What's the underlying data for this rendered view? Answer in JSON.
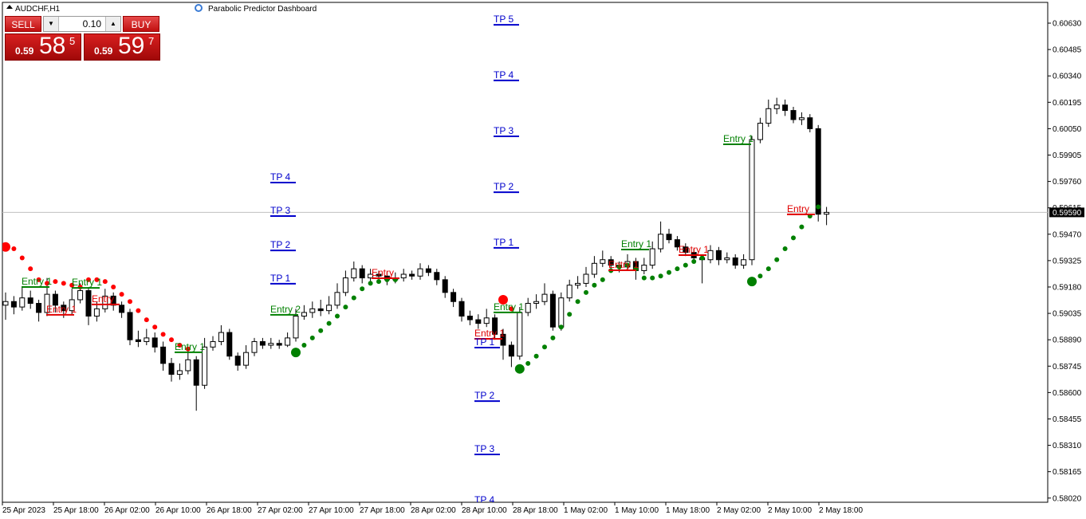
{
  "chart_data": {
    "type": "candlestick",
    "title": "AUDCHF,H1",
    "indicator": "Parabolic Predictor Dashboard",
    "ylim": [
      0.57997,
      0.60744
    ],
    "yticks": [
      {
        "value": 0.6063,
        "label": "0.60630"
      },
      {
        "value": 0.60485,
        "label": "0.60485"
      },
      {
        "value": 0.6034,
        "label": "0.60340"
      },
      {
        "value": 0.60195,
        "label": "0.60195"
      },
      {
        "value": 0.6005,
        "label": "0.60050"
      },
      {
        "value": 0.59905,
        "label": "0.59905"
      },
      {
        "value": 0.5976,
        "label": "0.59760"
      },
      {
        "value": 0.59615,
        "label": "0.59615"
      },
      {
        "value": 0.5947,
        "label": "0.59470"
      },
      {
        "value": 0.59325,
        "label": "0.59325"
      },
      {
        "value": 0.5918,
        "label": "0.59180"
      },
      {
        "value": 0.59035,
        "label": "0.59035"
      },
      {
        "value": 0.5889,
        "label": "0.58890"
      },
      {
        "value": 0.58745,
        "label": "0.58745"
      },
      {
        "value": 0.586,
        "label": "0.58600"
      },
      {
        "value": 0.58455,
        "label": "0.58455"
      },
      {
        "value": 0.5831,
        "label": "0.58310"
      },
      {
        "value": 0.58165,
        "label": "0.58165"
      },
      {
        "value": 0.5802,
        "label": "0.58020"
      }
    ],
    "current_price": {
      "value": 0.5959,
      "label": "0.59590"
    },
    "xlabels": [
      "25 Apr 2023",
      "25 Apr 18:00",
      "26 Apr 02:00",
      "26 Apr 10:00",
      "26 Apr 18:00",
      "27 Apr 02:00",
      "27 Apr 10:00",
      "27 Apr 18:00",
      "28 Apr 02:00",
      "28 Apr 10:00",
      "28 Apr 18:00",
      "1 May 02:00",
      "1 May 10:00",
      "1 May 18:00",
      "2 May 02:00",
      "2 May 10:00",
      "2 May 18:00"
    ],
    "bull_color": "#ffffff",
    "bear_color": "#000000",
    "candles": [
      [
        0.5908,
        0.5915,
        0.59,
        0.591
      ],
      [
        0.591,
        0.5913,
        0.5903,
        0.5907
      ],
      [
        0.5907,
        0.5918,
        0.5905,
        0.5912
      ],
      [
        0.5912,
        0.5916,
        0.5906,
        0.5909
      ],
      [
        0.5909,
        0.5911,
        0.5899,
        0.5904
      ],
      [
        0.5904,
        0.5923,
        0.5902,
        0.5914
      ],
      [
        0.5914,
        0.5916,
        0.5904,
        0.5908
      ],
      [
        0.5908,
        0.591,
        0.5901,
        0.5905
      ],
      [
        0.5905,
        0.5917,
        0.5903,
        0.5911
      ],
      [
        0.5911,
        0.592,
        0.5909,
        0.5916
      ],
      [
        0.5916,
        0.5918,
        0.5897,
        0.5902
      ],
      [
        0.5902,
        0.591,
        0.5899,
        0.5906
      ],
      [
        0.5906,
        0.5917,
        0.5904,
        0.5913
      ],
      [
        0.5913,
        0.5915,
        0.5905,
        0.5908
      ],
      [
        0.5908,
        0.591,
        0.5901,
        0.5904
      ],
      [
        0.5904,
        0.5906,
        0.5886,
        0.5889
      ],
      [
        0.5889,
        0.5894,
        0.5885,
        0.5888
      ],
      [
        0.5888,
        0.5895,
        0.5886,
        0.589
      ],
      [
        0.589,
        0.5893,
        0.5882,
        0.5885
      ],
      [
        0.5885,
        0.5888,
        0.5872,
        0.5876
      ],
      [
        0.5876,
        0.5879,
        0.5866,
        0.587
      ],
      [
        0.587,
        0.5876,
        0.5867,
        0.5872
      ],
      [
        0.5872,
        0.5883,
        0.587,
        0.5878
      ],
      [
        0.5878,
        0.588,
        0.585,
        0.5864
      ],
      [
        0.5864,
        0.589,
        0.5862,
        0.5885
      ],
      [
        0.5885,
        0.5891,
        0.5883,
        0.5888
      ],
      [
        0.5888,
        0.5897,
        0.5886,
        0.5893
      ],
      [
        0.5893,
        0.5895,
        0.5878,
        0.588
      ],
      [
        0.588,
        0.5882,
        0.5872,
        0.5875
      ],
      [
        0.5875,
        0.5886,
        0.5873,
        0.5882
      ],
      [
        0.5882,
        0.589,
        0.588,
        0.5888
      ],
      [
        0.5888,
        0.589,
        0.5884,
        0.5886
      ],
      [
        0.5886,
        0.589,
        0.5884,
        0.5887
      ],
      [
        0.5887,
        0.5889,
        0.5884,
        0.5886
      ],
      [
        0.5886,
        0.5893,
        0.5885,
        0.589
      ],
      [
        0.589,
        0.5906,
        0.5888,
        0.5902
      ],
      [
        0.5902,
        0.5908,
        0.59,
        0.5904
      ],
      [
        0.5904,
        0.591,
        0.5901,
        0.5906
      ],
      [
        0.5906,
        0.5911,
        0.5902,
        0.5905
      ],
      [
        0.5905,
        0.5913,
        0.5903,
        0.5908
      ],
      [
        0.5908,
        0.592,
        0.5906,
        0.5915
      ],
      [
        0.5915,
        0.5927,
        0.5913,
        0.5923
      ],
      [
        0.5923,
        0.5932,
        0.5921,
        0.5928
      ],
      [
        0.5928,
        0.593,
        0.592,
        0.5923
      ],
      [
        0.5923,
        0.5928,
        0.5921,
        0.5925
      ],
      [
        0.5925,
        0.5927,
        0.5922,
        0.5924
      ],
      [
        0.5924,
        0.5926,
        0.5919,
        0.5922
      ],
      [
        0.5922,
        0.5926,
        0.592,
        0.5923
      ],
      [
        0.5923,
        0.5928,
        0.5921,
        0.5925
      ],
      [
        0.5925,
        0.5927,
        0.5922,
        0.5924
      ],
      [
        0.5924,
        0.5931,
        0.5922,
        0.5928
      ],
      [
        0.5928,
        0.593,
        0.5924,
        0.5926
      ],
      [
        0.5926,
        0.5928,
        0.5919,
        0.5922
      ],
      [
        0.5922,
        0.5924,
        0.5912,
        0.5915
      ],
      [
        0.5915,
        0.5917,
        0.5907,
        0.591
      ],
      [
        0.591,
        0.5912,
        0.5899,
        0.5902
      ],
      [
        0.5902,
        0.5905,
        0.5897,
        0.59
      ],
      [
        0.59,
        0.5903,
        0.5895,
        0.5898
      ],
      [
        0.5898,
        0.5906,
        0.5896,
        0.5901
      ],
      [
        0.5901,
        0.5903,
        0.5889,
        0.5892
      ],
      [
        0.5892,
        0.5895,
        0.5878,
        0.5886
      ],
      [
        0.5886,
        0.5888,
        0.5874,
        0.588
      ],
      [
        0.588,
        0.5907,
        0.5878,
        0.5904
      ],
      [
        0.5904,
        0.5912,
        0.5902,
        0.5909
      ],
      [
        0.5909,
        0.5914,
        0.5906,
        0.591
      ],
      [
        0.591,
        0.592,
        0.5908,
        0.5914
      ],
      [
        0.5914,
        0.5916,
        0.5894,
        0.5896
      ],
      [
        0.5896,
        0.5915,
        0.5894,
        0.5912
      ],
      [
        0.5912,
        0.5922,
        0.591,
        0.5919
      ],
      [
        0.5919,
        0.5924,
        0.5917,
        0.592
      ],
      [
        0.592,
        0.5929,
        0.5918,
        0.5925
      ],
      [
        0.5925,
        0.5935,
        0.5923,
        0.5931
      ],
      [
        0.5931,
        0.5938,
        0.5929,
        0.5933
      ],
      [
        0.5933,
        0.5935,
        0.5927,
        0.593
      ],
      [
        0.593,
        0.5932,
        0.5926,
        0.5929
      ],
      [
        0.5929,
        0.5936,
        0.5927,
        0.5932
      ],
      [
        0.5932,
        0.5934,
        0.5922,
        0.5927
      ],
      [
        0.5927,
        0.5934,
        0.5925,
        0.593
      ],
      [
        0.593,
        0.5943,
        0.5928,
        0.5939
      ],
      [
        0.5939,
        0.5954,
        0.5937,
        0.5947
      ],
      [
        0.5947,
        0.595,
        0.5942,
        0.5944
      ],
      [
        0.5944,
        0.5946,
        0.5938,
        0.594
      ],
      [
        0.594,
        0.5942,
        0.5935,
        0.5937
      ],
      [
        0.5937,
        0.5939,
        0.5931,
        0.5934
      ],
      [
        0.5934,
        0.5936,
        0.592,
        0.5933
      ],
      [
        0.5933,
        0.5941,
        0.5931,
        0.5938
      ],
      [
        0.5938,
        0.594,
        0.593,
        0.5933
      ],
      [
        0.5933,
        0.5937,
        0.5931,
        0.5934
      ],
      [
        0.5934,
        0.5936,
        0.5928,
        0.593
      ],
      [
        0.593,
        0.5936,
        0.5928,
        0.5933
      ],
      [
        0.5933,
        0.6001,
        0.593,
        0.5999
      ],
      [
        0.5999,
        0.6011,
        0.5997,
        0.6008
      ],
      [
        0.6008,
        0.6021,
        0.6006,
        0.6016
      ],
      [
        0.6016,
        0.6022,
        0.6013,
        0.6018
      ],
      [
        0.6018,
        0.6021,
        0.6012,
        0.6015
      ],
      [
        0.6015,
        0.6017,
        0.6008,
        0.601
      ],
      [
        0.601,
        0.6014,
        0.6007,
        0.6011
      ],
      [
        0.6011,
        0.6013,
        0.6003,
        0.6005
      ],
      [
        0.6005,
        0.6007,
        0.5954,
        0.5958
      ],
      [
        0.5958,
        0.5962,
        0.5952,
        0.5959
      ]
    ],
    "sar_series": [
      {
        "color": "#ff0000",
        "values": [
          0.594,
          0.5939,
          0.5934,
          0.5928,
          0.5922,
          0.592,
          0.5921,
          0.592,
          0.5919,
          0.5918,
          0.5922,
          0.5922,
          0.5921,
          0.5918,
          0.5914,
          0.591,
          0.5905,
          0.59,
          0.5896,
          0.5892,
          0.5889,
          0.5886,
          0.5884,
          null,
          null,
          null,
          null,
          null,
          null,
          null,
          null,
          null,
          null,
          null,
          null,
          null,
          null,
          null,
          null,
          null,
          null,
          null,
          null,
          null,
          null,
          null,
          null,
          null,
          null,
          null,
          null,
          null,
          null,
          null,
          null,
          null,
          null,
          null,
          null,
          null,
          0.5911,
          0.5906,
          null,
          null,
          null,
          null,
          null,
          null,
          null,
          null,
          null,
          null,
          null,
          null,
          null,
          null,
          null,
          null,
          null,
          null,
          null,
          null,
          null,
          null,
          null,
          null,
          null,
          null,
          null,
          null,
          null,
          null,
          null,
          null,
          null,
          null,
          null,
          null,
          null,
          null
        ]
      },
      {
        "color": "#008000",
        "values": [
          null,
          null,
          null,
          null,
          null,
          null,
          null,
          null,
          null,
          null,
          null,
          null,
          null,
          null,
          null,
          null,
          null,
          null,
          null,
          null,
          null,
          null,
          null,
          null,
          null,
          null,
          null,
          null,
          null,
          null,
          null,
          null,
          null,
          null,
          null,
          0.5882,
          0.5886,
          0.589,
          0.5894,
          0.5898,
          0.5902,
          0.5907,
          0.5912,
          0.5917,
          0.592,
          0.5921,
          0.5922,
          0.5922,
          null,
          null,
          null,
          null,
          null,
          null,
          null,
          null,
          null,
          null,
          null,
          null,
          null,
          null,
          0.5873,
          0.5876,
          0.588,
          0.5885,
          0.589,
          0.5896,
          0.5903,
          0.591,
          0.5915,
          0.5919,
          0.5922,
          0.5927,
          0.5929,
          0.593,
          0.5928,
          0.5923,
          0.5923,
          0.5924,
          0.5926,
          0.5928,
          0.593,
          0.5932,
          0.5934,
          null,
          null,
          null,
          null,
          null,
          0.5921,
          0.5924,
          0.5928,
          0.5933,
          0.5939,
          0.5945,
          0.5951,
          0.5957,
          0.5962,
          null
        ]
      }
    ],
    "annotations": [
      {
        "label": "Entry 1",
        "level": 0.5918,
        "color": "#008000"
      },
      {
        "label": "Entry 1",
        "level": 0.59175,
        "color": "#008000"
      },
      {
        "label": "Entry 1",
        "level": 0.59027,
        "color": "#e00000"
      },
      {
        "label": "Entry",
        "level": 0.59084,
        "color": "#e00000"
      },
      {
        "label": "Entry 1",
        "level": 0.58821,
        "color": "#008000"
      },
      {
        "label": "TP 4",
        "level": 0.59754,
        "color": "#0000cc"
      },
      {
        "label": "TP 3",
        "level": 0.5957,
        "color": "#0000cc"
      },
      {
        "label": "TP 2",
        "level": 0.59381,
        "color": "#0000cc"
      },
      {
        "label": "TP 1",
        "level": 0.59198,
        "color": "#0000cc"
      },
      {
        "label": "Entry 2",
        "level": 0.59027,
        "color": "#008000"
      },
      {
        "label": "Entry",
        "level": 0.59228,
        "color": "#e00000"
      },
      {
        "label": "TP 5",
        "level": 0.60621,
        "color": "#0000cc"
      },
      {
        "label": "TP 4",
        "level": 0.60315,
        "color": "#0000cc"
      },
      {
        "label": "TP 3",
        "level": 0.60008,
        "color": "#0000cc"
      },
      {
        "label": "TP 2",
        "level": 0.59701,
        "color": "#0000cc"
      },
      {
        "label": "TP 1",
        "level": 0.59395,
        "color": "#0000cc"
      },
      {
        "label": "Entry 1",
        "level": 0.5904,
        "color": "#008000"
      },
      {
        "label": "Entry 1",
        "level": 0.58895,
        "color": "#e00000"
      },
      {
        "label": "TP 1",
        "level": 0.58847,
        "color": "#0000cc"
      },
      {
        "label": "TP 2",
        "level": 0.58553,
        "color": "#0000cc"
      },
      {
        "label": "TP 3",
        "level": 0.5826,
        "color": "#0000cc"
      },
      {
        "label": "TP 4",
        "level": 0.5798,
        "color": "#0000cc"
      },
      {
        "label": "Entry 1",
        "level": 0.59386,
        "color": "#008000"
      },
      {
        "label": "Entry 1",
        "level": 0.59272,
        "color": "#e00000"
      },
      {
        "label": "Entry 1",
        "level": 0.59355,
        "color": "#e00000"
      },
      {
        "label": "Entry 1",
        "level": 0.59964,
        "color": "#008000"
      },
      {
        "label": "Entry",
        "level": 0.59579,
        "color": "#e00000"
      }
    ]
  },
  "trade_panel": {
    "sell": "SELL",
    "buy": "BUY",
    "lot": "0.10",
    "sell_price": {
      "small": "0.59",
      "big": "58",
      "sup": "5"
    },
    "buy_price": {
      "small": "0.59",
      "big": "59",
      "sup": "7"
    }
  }
}
